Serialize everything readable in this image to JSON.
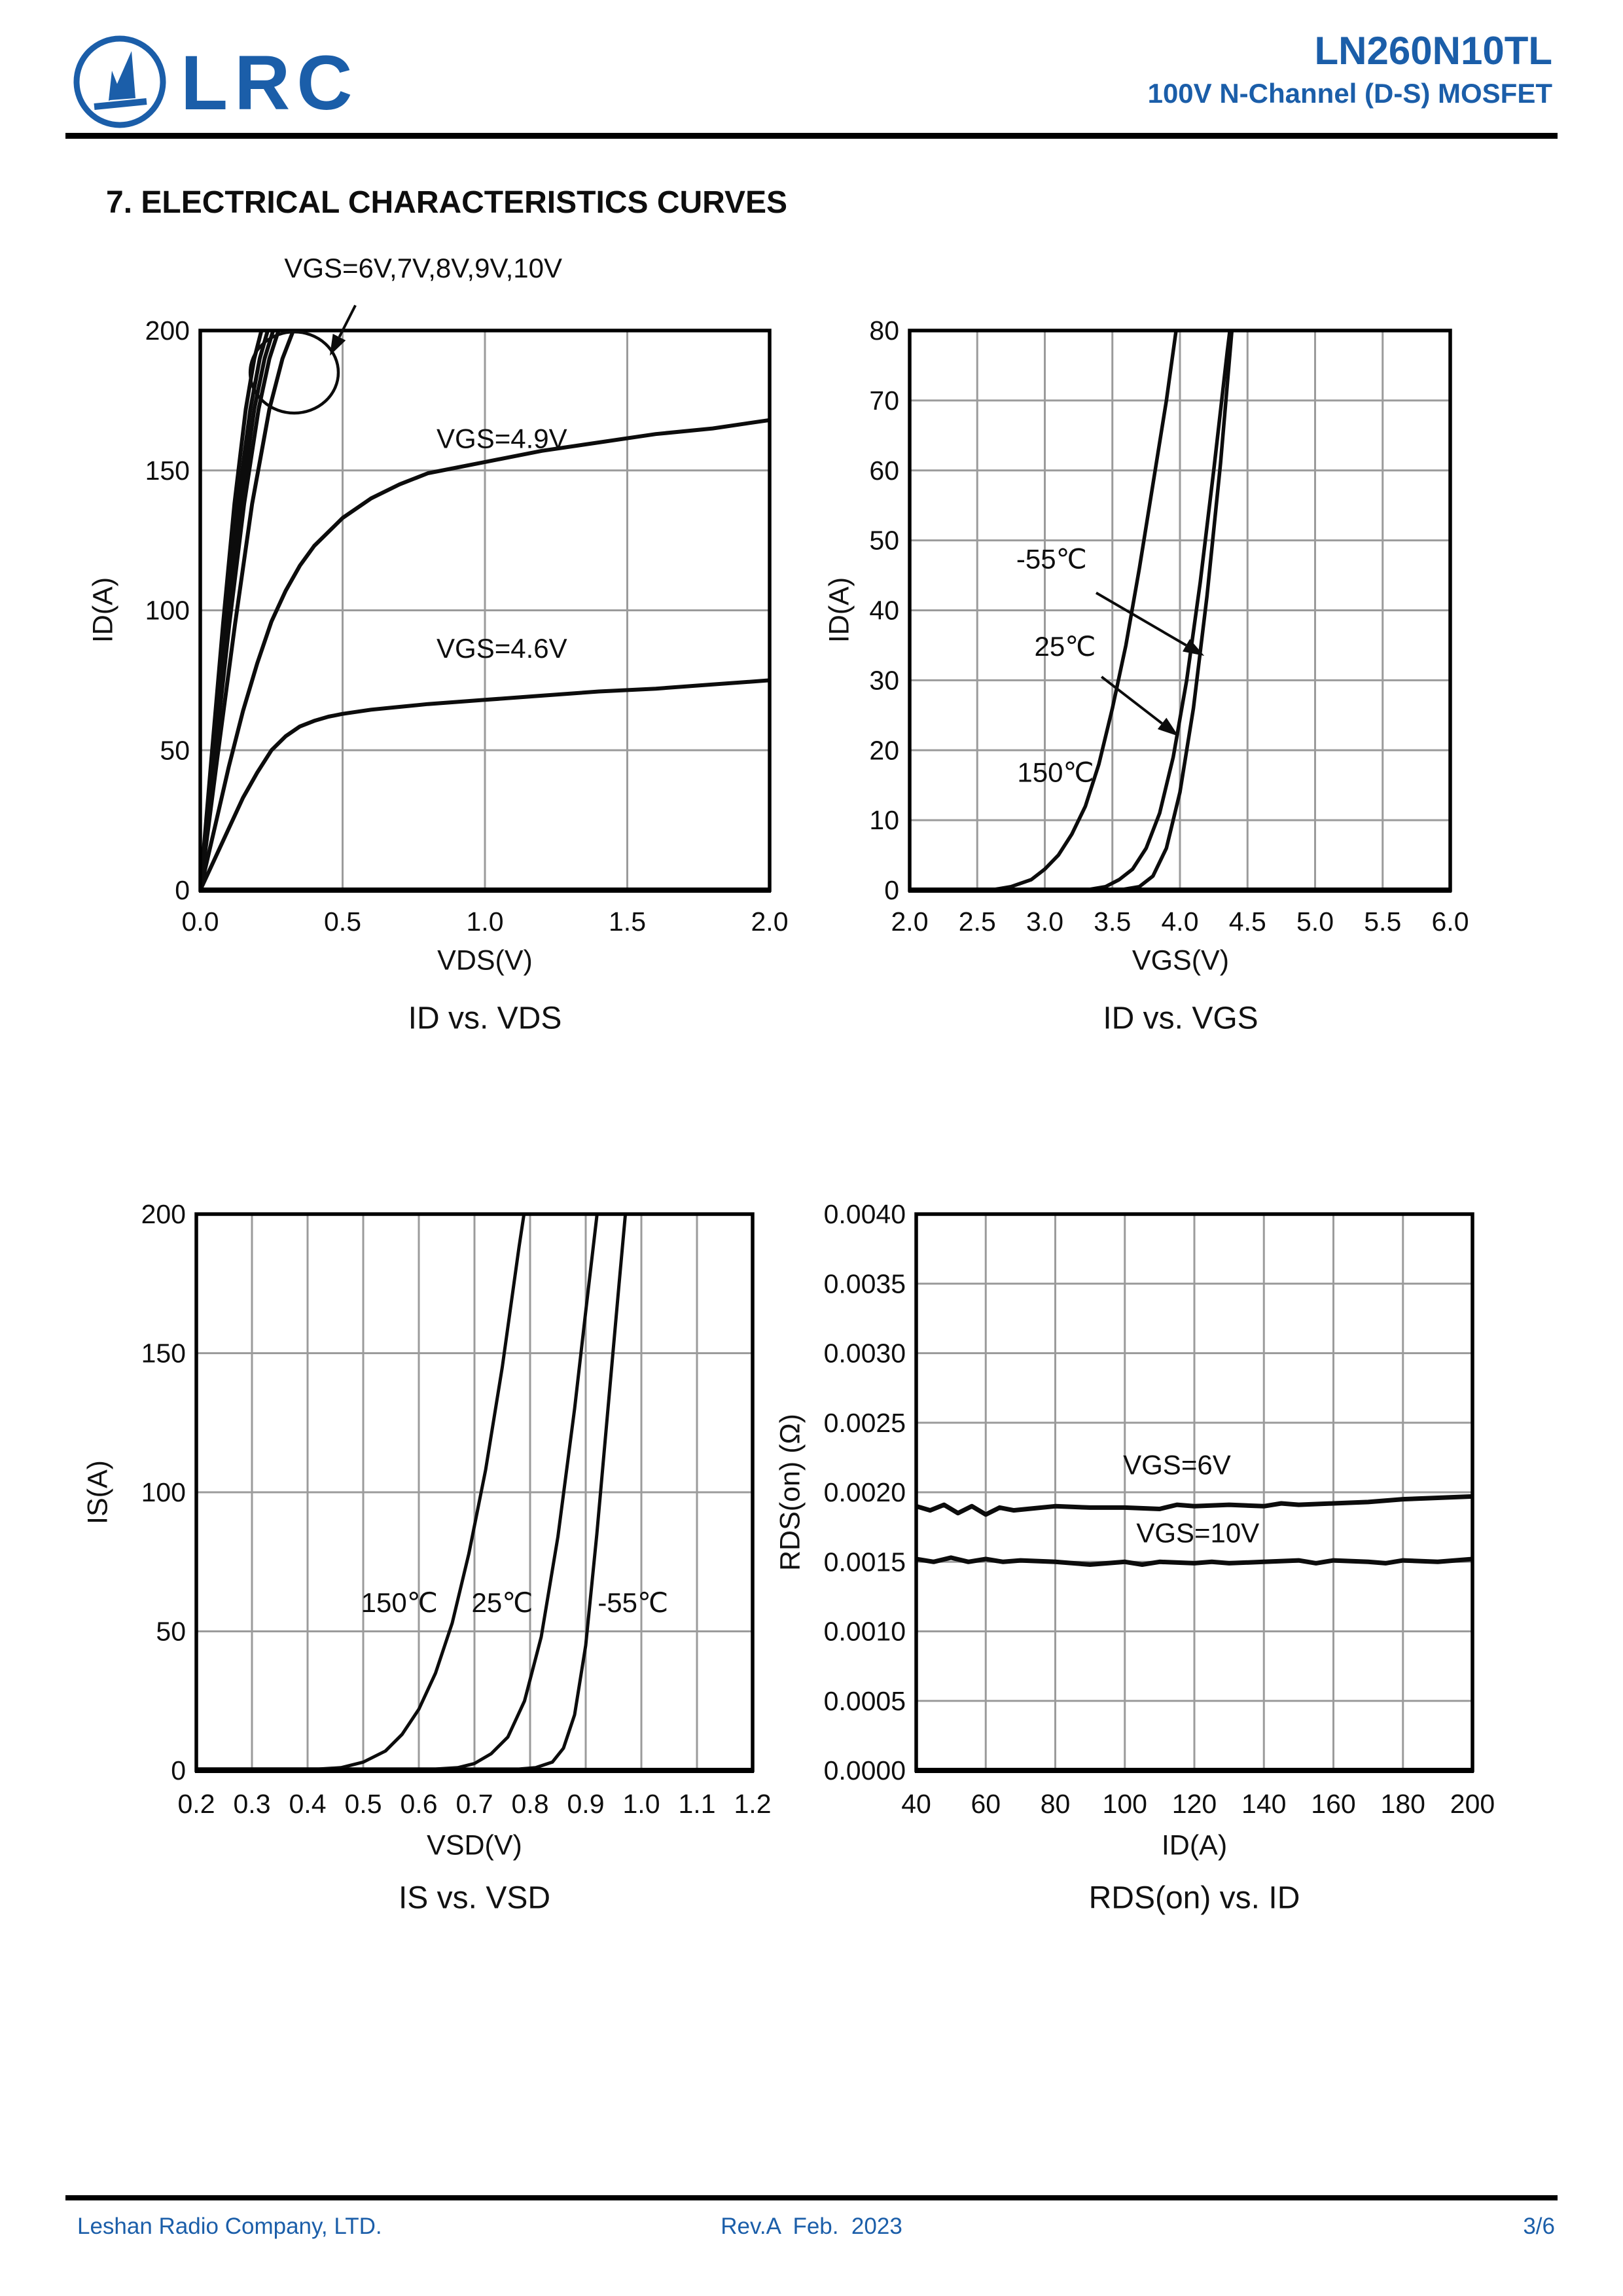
{
  "header": {
    "brand": "LRC",
    "part_number": "LN260N10TL",
    "subtitle": "100V N-Channel (D-S) MOSFET"
  },
  "section_title": "7. ELECTRICAL CHARACTERISTICS CURVES",
  "footer": {
    "company": "Leshan Radio Company, LTD.",
    "revision": "Rev.A  Feb.  2023",
    "page": "3/6"
  },
  "colors": {
    "accent": "#1b5ea9",
    "curve": "#0c0c0c",
    "grid": "#9b9b9b",
    "border": "#000000"
  },
  "chart_data": [
    {
      "type": "line",
      "title": "ID vs. VDS",
      "xlabel": "VDS(V)",
      "ylabel": "ID(A)",
      "xlim": [
        0.0,
        2.0
      ],
      "ylim": [
        0,
        200
      ],
      "xticks": {
        "step": 0.5,
        "decimals": 1
      },
      "yticks": {
        "step": 50,
        "decimals": 0
      },
      "xgrid": 0.5,
      "ygrid": 50,
      "grid": true,
      "legend_position": "none",
      "series": [
        {
          "name": "VGS=10V",
          "points": [
            [
              0,
              0
            ],
            [
              0.04,
              48
            ],
            [
              0.08,
              95
            ],
            [
              0.12,
              138
            ],
            [
              0.16,
              172
            ],
            [
              0.19,
              190
            ],
            [
              0.215,
              200
            ],
            [
              0.23,
              208
            ]
          ]
        },
        {
          "name": "VGS=9V",
          "points": [
            [
              0,
              0
            ],
            [
              0.044,
              48
            ],
            [
              0.088,
              95
            ],
            [
              0.132,
              138
            ],
            [
              0.176,
              172
            ],
            [
              0.209,
              190
            ],
            [
              0.237,
              200
            ],
            [
              0.253,
              208
            ]
          ]
        },
        {
          "name": "VGS=8V",
          "points": [
            [
              0,
              0
            ],
            [
              0.048,
              48
            ],
            [
              0.095,
              95
            ],
            [
              0.143,
              138
            ],
            [
              0.19,
              172
            ],
            [
              0.226,
              190
            ],
            [
              0.256,
              200
            ],
            [
              0.274,
              208
            ]
          ]
        },
        {
          "name": "VGS=7V",
          "points": [
            [
              0,
              0
            ],
            [
              0.051,
              48
            ],
            [
              0.102,
              95
            ],
            [
              0.154,
              138
            ],
            [
              0.205,
              172
            ],
            [
              0.243,
              190
            ],
            [
              0.275,
              200
            ],
            [
              0.294,
              208
            ]
          ]
        },
        {
          "name": "VGS=6V",
          "points": [
            [
              0,
              0
            ],
            [
              0.061,
              48
            ],
            [
              0.122,
              95
            ],
            [
              0.182,
              138
            ],
            [
              0.243,
              172
            ],
            [
              0.289,
              190
            ],
            [
              0.327,
              200
            ],
            [
              0.35,
              208
            ]
          ]
        },
        {
          "name": "VGS=4.9V",
          "points": [
            [
              0,
              0
            ],
            [
              0.05,
              22
            ],
            [
              0.1,
              44
            ],
            [
              0.15,
              64
            ],
            [
              0.2,
              81
            ],
            [
              0.25,
              96
            ],
            [
              0.3,
              107
            ],
            [
              0.35,
              116
            ],
            [
              0.4,
              123
            ],
            [
              0.5,
              133
            ],
            [
              0.6,
              140
            ],
            [
              0.7,
              145
            ],
            [
              0.8,
              149
            ],
            [
              1.0,
              153
            ],
            [
              1.2,
              157
            ],
            [
              1.4,
              160
            ],
            [
              1.6,
              163
            ],
            [
              1.8,
              165
            ],
            [
              2.0,
              168
            ]
          ]
        },
        {
          "name": "VGS=4.6V",
          "points": [
            [
              0,
              0
            ],
            [
              0.05,
              11
            ],
            [
              0.1,
              22
            ],
            [
              0.15,
              33
            ],
            [
              0.2,
              42
            ],
            [
              0.25,
              50
            ],
            [
              0.3,
              55
            ],
            [
              0.35,
              58.5
            ],
            [
              0.4,
              60.5
            ],
            [
              0.45,
              62
            ],
            [
              0.5,
              63
            ],
            [
              0.6,
              64.5
            ],
            [
              0.7,
              65.5
            ],
            [
              0.8,
              66.5
            ],
            [
              1.0,
              68
            ],
            [
              1.2,
              69.5
            ],
            [
              1.4,
              71
            ],
            [
              1.6,
              72
            ],
            [
              1.8,
              73.5
            ],
            [
              2.0,
              75
            ]
          ]
        }
      ],
      "annotations": [
        {
          "type": "text",
          "text": "VGS=6V,7V,8V,9V,10V",
          "x": 0.295,
          "y": 219,
          "anchor": "start"
        },
        {
          "type": "arrow",
          "from": [
            0.545,
            209
          ],
          "to": [
            0.455,
            191
          ]
        },
        {
          "type": "ellipse",
          "cx": 0.33,
          "cy": 185,
          "rx": 0.155,
          "ry": 14.5
        },
        {
          "type": "text",
          "text": "VGS=4.9V",
          "x": 0.83,
          "y": 158,
          "anchor": "start"
        },
        {
          "type": "text",
          "text": "VGS=4.6V",
          "x": 0.83,
          "y": 83,
          "anchor": "start"
        }
      ]
    },
    {
      "type": "line",
      "title": "ID vs. VGS",
      "xlabel": "VGS(V)",
      "ylabel": "ID(A)",
      "xlim": [
        2.0,
        6.0
      ],
      "ylim": [
        0,
        80
      ],
      "xticks": {
        "step": 0.5,
        "decimals": 1
      },
      "yticks": {
        "step": 10,
        "decimals": 0
      },
      "xgrid": 0.5,
      "ygrid": 10,
      "grid": true,
      "legend_position": "none",
      "series": [
        {
          "name": "150C",
          "points": [
            [
              2.0,
              0
            ],
            [
              2.6,
              0
            ],
            [
              2.75,
              0.5
            ],
            [
              2.9,
              1.5
            ],
            [
              3.0,
              3
            ],
            [
              3.1,
              5
            ],
            [
              3.2,
              8
            ],
            [
              3.3,
              12
            ],
            [
              3.4,
              18
            ],
            [
              3.5,
              26
            ],
            [
              3.6,
              35
            ],
            [
              3.7,
              46
            ],
            [
              3.8,
              58
            ],
            [
              3.9,
              70
            ],
            [
              4.0,
              84
            ]
          ]
        },
        {
          "name": "25C",
          "points": [
            [
              2.0,
              0
            ],
            [
              3.3,
              0
            ],
            [
              3.45,
              0.5
            ],
            [
              3.55,
              1.5
            ],
            [
              3.65,
              3
            ],
            [
              3.75,
              6
            ],
            [
              3.85,
              11
            ],
            [
              3.95,
              19
            ],
            [
              4.05,
              30
            ],
            [
              4.15,
              44
            ],
            [
              4.25,
              60
            ],
            [
              4.35,
              77
            ],
            [
              4.42,
              88
            ]
          ]
        },
        {
          "name": "-55C",
          "points": [
            [
              2.0,
              0
            ],
            [
              3.55,
              0
            ],
            [
              3.7,
              0.5
            ],
            [
              3.8,
              2
            ],
            [
              3.9,
              6
            ],
            [
              4.0,
              14
            ],
            [
              4.1,
              26
            ],
            [
              4.2,
              42
            ],
            [
              4.3,
              61
            ],
            [
              4.42,
              88
            ]
          ]
        }
      ],
      "annotations": [
        {
          "type": "text",
          "text": "-55℃",
          "x": 3.05,
          "y": 46,
          "anchor": "middle"
        },
        {
          "type": "arrow",
          "from": [
            3.38,
            42.5
          ],
          "to": [
            4.18,
            33.5
          ]
        },
        {
          "type": "text",
          "text": "25℃",
          "x": 3.15,
          "y": 33.5,
          "anchor": "middle"
        },
        {
          "type": "arrow",
          "from": [
            3.42,
            30.5
          ],
          "to": [
            3.99,
            22.0
          ]
        },
        {
          "type": "text",
          "text": "150℃",
          "x": 3.08,
          "y": 15.5,
          "anchor": "middle"
        }
      ]
    },
    {
      "type": "line",
      "title": "IS vs. VSD",
      "xlabel": "VSD(V)",
      "ylabel": "IS(A)",
      "xlim": [
        0.2,
        1.2
      ],
      "ylim": [
        0,
        200
      ],
      "xticks": {
        "step": 0.1,
        "decimals": 1
      },
      "yticks": {
        "step": 50,
        "decimals": 0
      },
      "xgrid": 0.1,
      "ygrid": 50,
      "grid": true,
      "legend_position": "none",
      "series": [
        {
          "name": "150C",
          "points": [
            [
              0.2,
              0.5
            ],
            [
              0.42,
              0.5
            ],
            [
              0.46,
              1
            ],
            [
              0.5,
              3
            ],
            [
              0.54,
              7
            ],
            [
              0.57,
              13
            ],
            [
              0.6,
              22
            ],
            [
              0.63,
              35
            ],
            [
              0.66,
              53
            ],
            [
              0.69,
              78
            ],
            [
              0.72,
              108
            ],
            [
              0.75,
              145
            ],
            [
              0.78,
              188
            ],
            [
              0.795,
              208
            ]
          ]
        },
        {
          "name": "25C",
          "points": [
            [
              0.2,
              0.5
            ],
            [
              0.63,
              0.5
            ],
            [
              0.67,
              1
            ],
            [
              0.7,
              2.5
            ],
            [
              0.73,
              6
            ],
            [
              0.76,
              12
            ],
            [
              0.79,
              25
            ],
            [
              0.82,
              48
            ],
            [
              0.85,
              84
            ],
            [
              0.88,
              130
            ],
            [
              0.9,
              165
            ],
            [
              0.925,
              208
            ]
          ]
        },
        {
          "name": "-55C",
          "points": [
            [
              0.2,
              0.5
            ],
            [
              0.78,
              0.5
            ],
            [
              0.81,
              1
            ],
            [
              0.84,
              3
            ],
            [
              0.86,
              8
            ],
            [
              0.88,
              20
            ],
            [
              0.9,
              45
            ],
            [
              0.92,
              85
            ],
            [
              0.94,
              130
            ],
            [
              0.96,
              175
            ],
            [
              0.975,
              208
            ]
          ]
        }
      ],
      "annotations": [
        {
          "type": "text",
          "text": "150℃",
          "x": 0.565,
          "y": 57,
          "anchor": "middle"
        },
        {
          "type": "text",
          "text": "25℃",
          "x": 0.75,
          "y": 57,
          "anchor": "middle"
        },
        {
          "type": "text",
          "text": "-55℃",
          "x": 0.985,
          "y": 57,
          "anchor": "middle"
        }
      ]
    },
    {
      "type": "line",
      "title": "RDS(on) vs. ID",
      "xlabel": "ID(A)",
      "ylabel": "RDS(on) (Ω)",
      "xlim": [
        40,
        200
      ],
      "ylim": [
        0.0,
        0.004
      ],
      "xticks": {
        "step": 20,
        "decimals": 0
      },
      "yticks": {
        "step": 0.0005,
        "decimals": 4
      },
      "xgrid": 20,
      "ygrid": 0.0005,
      "grid": true,
      "legend_position": "none",
      "series": [
        {
          "name": "VGS=6V",
          "points": [
            [
              40,
              0.0019
            ],
            [
              44,
              0.00187
            ],
            [
              48,
              0.00191
            ],
            [
              52,
              0.00185
            ],
            [
              56,
              0.0019
            ],
            [
              60,
              0.00184
            ],
            [
              64,
              0.00189
            ],
            [
              68,
              0.00187
            ],
            [
              72,
              0.00188
            ],
            [
              80,
              0.0019
            ],
            [
              90,
              0.00189
            ],
            [
              100,
              0.00189
            ],
            [
              110,
              0.00188
            ],
            [
              115,
              0.00191
            ],
            [
              120,
              0.0019
            ],
            [
              130,
              0.00191
            ],
            [
              140,
              0.0019
            ],
            [
              145,
              0.00192
            ],
            [
              150,
              0.00191
            ],
            [
              160,
              0.00192
            ],
            [
              170,
              0.00193
            ],
            [
              180,
              0.00195
            ],
            [
              190,
              0.00196
            ],
            [
              200,
              0.00197
            ]
          ]
        },
        {
          "name": "VGS=10V",
          "points": [
            [
              40,
              0.00152
            ],
            [
              45,
              0.0015
            ],
            [
              50,
              0.00153
            ],
            [
              55,
              0.0015
            ],
            [
              60,
              0.00152
            ],
            [
              65,
              0.0015
            ],
            [
              70,
              0.00151
            ],
            [
              80,
              0.0015
            ],
            [
              90,
              0.00148
            ],
            [
              100,
              0.0015
            ],
            [
              105,
              0.00148
            ],
            [
              110,
              0.0015
            ],
            [
              120,
              0.00149
            ],
            [
              125,
              0.0015
            ],
            [
              130,
              0.00149
            ],
            [
              140,
              0.0015
            ],
            [
              150,
              0.00151
            ],
            [
              155,
              0.00149
            ],
            [
              160,
              0.00151
            ],
            [
              170,
              0.0015
            ],
            [
              175,
              0.00149
            ],
            [
              180,
              0.00151
            ],
            [
              190,
              0.0015
            ],
            [
              200,
              0.00152
            ]
          ]
        }
      ],
      "annotations": [
        {
          "type": "text",
          "text": "VGS=6V",
          "x": 115,
          "y": 0.00213,
          "anchor": "middle"
        },
        {
          "type": "text",
          "text": "VGS=10V",
          "x": 121,
          "y": 0.00164,
          "anchor": "middle"
        }
      ]
    }
  ]
}
